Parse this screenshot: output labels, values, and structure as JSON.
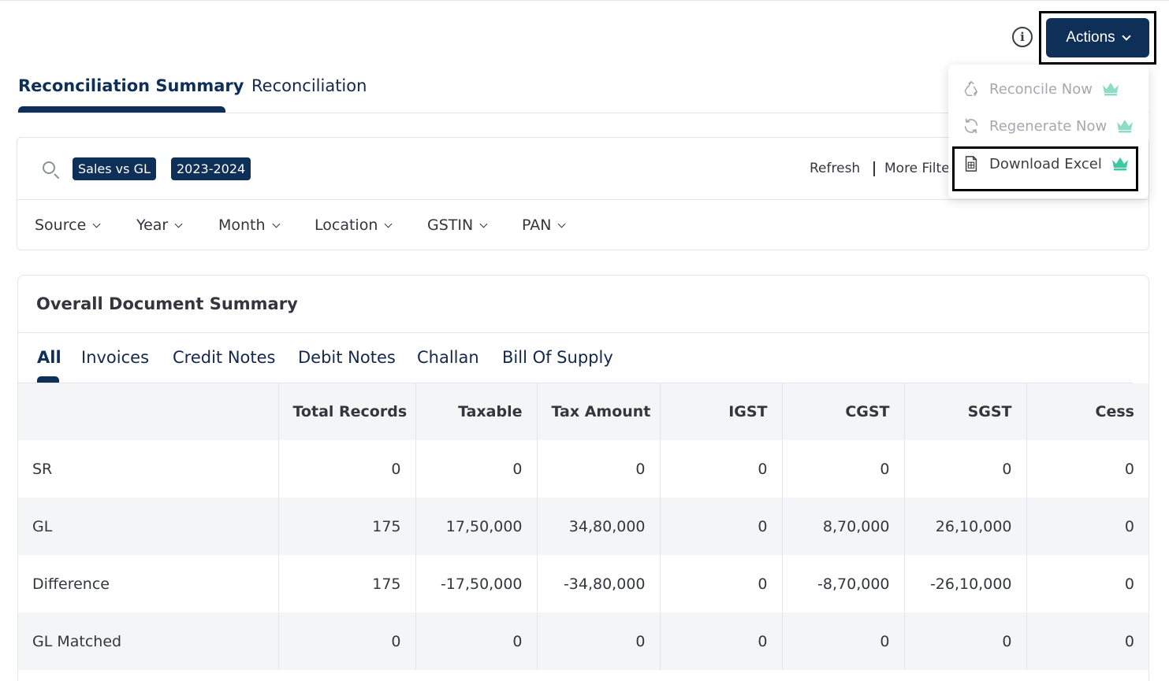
{
  "header": {
    "info_label": "i",
    "actions_label": "Actions"
  },
  "main_tabs": [
    {
      "label": "Reconciliation Summary",
      "active": true
    },
    {
      "label": "Reconciliation",
      "active": false
    }
  ],
  "filters": {
    "chips": [
      "Sales vs GL",
      "2023-2024"
    ],
    "refresh_label": "Refresh",
    "more_filters_label": "More Filters",
    "dropdowns": [
      "Source",
      "Year",
      "Month",
      "Location",
      "GSTIN",
      "PAN"
    ]
  },
  "summary": {
    "title": "Overall Document Summary",
    "tabs": [
      "All",
      "Invoices",
      "Credit Notes",
      "Debit Notes",
      "Challan",
      "Bill Of Supply"
    ],
    "columns": [
      "",
      "Total Records",
      "Taxable",
      "Tax Amount",
      "IGST",
      "CGST",
      "SGST",
      "Cess"
    ],
    "rows": [
      [
        "SR",
        "0",
        "0",
        "0",
        "0",
        "0",
        "0",
        "0"
      ],
      [
        "GL",
        "175",
        "17,50,000",
        "34,80,000",
        "0",
        "8,70,000",
        "26,10,000",
        "0"
      ],
      [
        "Difference",
        "175",
        "-17,50,000",
        "-34,80,000",
        "0",
        "-8,70,000",
        "-26,10,000",
        "0"
      ],
      [
        "GL Matched",
        "0",
        "0",
        "0",
        "0",
        "0",
        "0",
        "0"
      ]
    ]
  },
  "actions_menu": {
    "items": [
      {
        "label": "Reconcile Now",
        "icon": "recycle-icon",
        "disabled": true
      },
      {
        "label": "Regenerate Now",
        "icon": "refresh-icon",
        "disabled": true
      },
      {
        "label": "Download Excel",
        "icon": "excel-file-icon",
        "disabled": false
      }
    ],
    "crown_color": "#3dc8a3"
  },
  "colors": {
    "primary": "#0e2f57",
    "border": "#e3e5ea",
    "row_alt": "#f4f5f7"
  }
}
